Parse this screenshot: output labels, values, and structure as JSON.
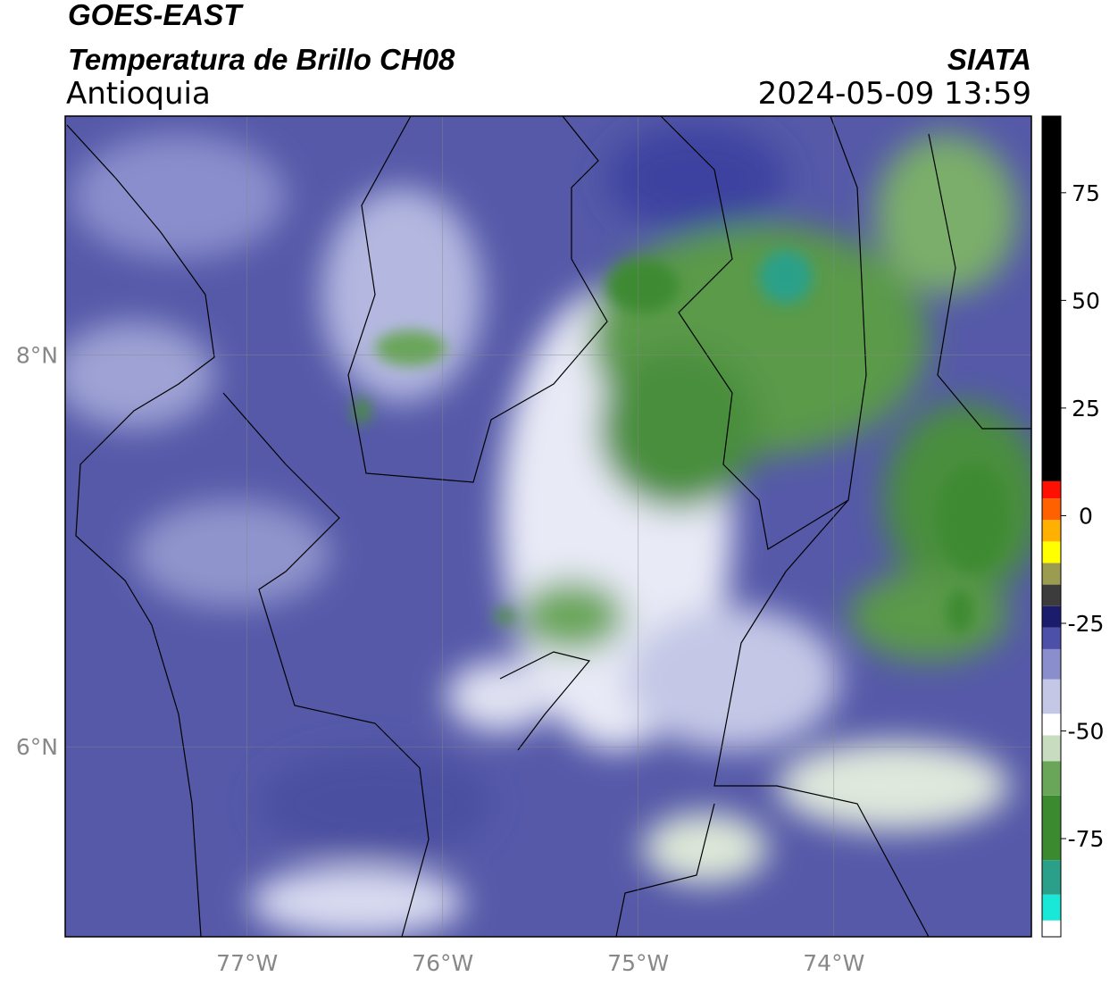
{
  "header": {
    "title": "GOES-EAST",
    "subtitle": "Temperatura de Brillo CH08",
    "region": "Antioquia",
    "source": "SIATA",
    "timestamp": "2024-05-09 13:59"
  },
  "map": {
    "lonlim": [
      -77.93,
      -72.99
    ],
    "latlim": [
      5.03,
      9.22
    ],
    "lonticks": [
      {
        "value": -77,
        "label": "77°W"
      },
      {
        "value": -76,
        "label": "76°W"
      },
      {
        "value": -75,
        "label": "75°W"
      },
      {
        "value": -74,
        "label": "74°W"
      }
    ],
    "latticks": [
      {
        "value": 8,
        "label": "8°N"
      },
      {
        "value": 6,
        "label": "6°N"
      }
    ],
    "grid": true
  },
  "colorbar": {
    "lim": [
      -97.8,
      92.8
    ],
    "ticks": [
      -75,
      -50,
      -25,
      0,
      25,
      50,
      75
    ],
    "stops": [
      [
        -97.8,
        "#ffffff"
      ],
      [
        -94,
        "#19e8d8"
      ],
      [
        -88,
        "#2aa08a"
      ],
      [
        -80,
        "#3c8a30"
      ],
      [
        -65,
        "#6aa65a"
      ],
      [
        -57,
        "#c8dcc0"
      ],
      [
        -51,
        "#ffffff"
      ],
      [
        -46,
        "#c4c8e6"
      ],
      [
        -38,
        "#8a8ecc"
      ],
      [
        -31,
        "#4c50a8"
      ],
      [
        -26,
        "#1c1c6c"
      ],
      [
        -21,
        "#3c3c3c"
      ],
      [
        -16,
        "#9c9c50"
      ],
      [
        -11,
        "#ffff00"
      ],
      [
        -6,
        "#ffb000"
      ],
      [
        -1,
        "#ff6000"
      ],
      [
        4,
        "#ff1000"
      ],
      [
        8,
        "#000000"
      ]
    ]
  }
}
